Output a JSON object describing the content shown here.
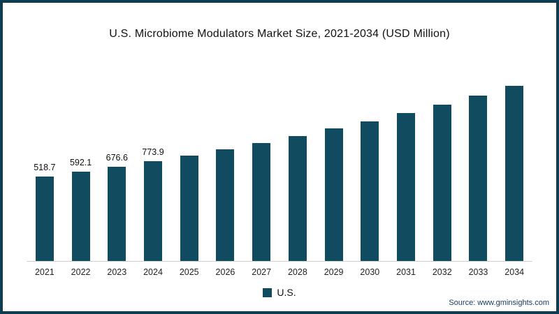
{
  "page": {
    "background": "#ffffff",
    "border_color": "#0d3d4f"
  },
  "chart_data": {
    "type": "bar",
    "title": "U.S. Microbiome Modulators Market Size, 2021-2034 (USD Million)",
    "xlabel": "",
    "ylabel": "",
    "grid": false,
    "bar_color": "#114B5F",
    "axis_line_color": "#cfcfcf",
    "categories": [
      "2021",
      "2022",
      "2023",
      "2024",
      "2025",
      "2026",
      "2027",
      "2028",
      "2029",
      "2030",
      "2031",
      "2032",
      "2033",
      "2034"
    ],
    "values": [
      518.7,
      592.1,
      676.6,
      773.9,
      884.6,
      1011.1,
      1155.7,
      1321.0,
      1509.9,
      1725.8,
      1972.6,
      2254.7,
      2577.1,
      2945.6
    ],
    "data_labels": [
      "518.7",
      "592.1",
      "676.6",
      "773.9",
      "",
      "",
      "",
      "",
      "",
      "",
      "",
      "",
      "",
      ""
    ],
    "legend_position": "bottom",
    "legend": [
      {
        "label": "U.S.",
        "color": "#114B5F"
      }
    ]
  },
  "footer": {
    "source": "Source: www.gminsights.com"
  }
}
